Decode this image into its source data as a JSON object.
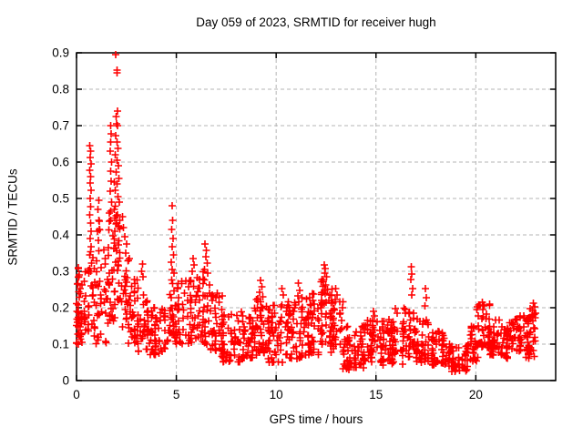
{
  "title": "Day 059 of 2023, SRMTID for receiver hugh",
  "x_axis": {
    "label": "GPS time / hours",
    "min": 0,
    "max": 24,
    "ticks": [
      0,
      5,
      10,
      15,
      20
    ],
    "tick_labels": [
      "0",
      "5",
      "10",
      "15",
      "20"
    ]
  },
  "y_axis": {
    "label": "SRMTID / TECUs",
    "min": 0,
    "max": 0.9,
    "ticks": [
      0,
      0.1,
      0.2,
      0.3,
      0.4,
      0.5,
      0.6,
      0.7,
      0.8,
      0.9
    ],
    "tick_labels": [
      "0",
      "0.1",
      "0.2",
      "0.3",
      "0.4",
      "0.5",
      "0.6",
      "0.7",
      "0.8",
      "0.9"
    ]
  },
  "style": {
    "marker_color": "#ff0000",
    "grid_color": "#b4b4b4",
    "border_color": "#000000",
    "background": "#ffffff"
  },
  "chart_data": {
    "type": "scatter",
    "marker": "plus",
    "series_name": "SRMTID",
    "title": "Day 059 of 2023, SRMTID for receiver hugh",
    "xlabel": "GPS time / hours",
    "ylabel": "SRMTID / TECUs",
    "xlim": [
      0,
      24
    ],
    "ylim": [
      0,
      0.9
    ],
    "grid": "dashed major",
    "legend": "none",
    "feature_points": [
      [
        1.97,
        0.895
      ],
      [
        2.02,
        0.852
      ],
      [
        2.03,
        0.845
      ],
      [
        2.05,
        0.74
      ],
      [
        1.99,
        0.725
      ],
      [
        2.0,
        0.705
      ],
      [
        2.06,
        0.7
      ],
      [
        1.96,
        0.672
      ],
      [
        2.02,
        0.655
      ],
      [
        2.08,
        0.638
      ],
      [
        1.93,
        0.62
      ],
      [
        2.04,
        0.605
      ],
      [
        2.1,
        0.59
      ],
      [
        1.98,
        0.573
      ],
      [
        2.12,
        0.555
      ],
      [
        2.02,
        0.54
      ],
      [
        1.95,
        0.522
      ],
      [
        2.07,
        0.505
      ],
      [
        2.14,
        0.49
      ],
      [
        1.9,
        0.47
      ],
      [
        2.05,
        0.455
      ],
      [
        2.16,
        0.44
      ],
      [
        2.1,
        0.425
      ],
      [
        1.92,
        0.41
      ],
      [
        0.66,
        0.645
      ],
      [
        0.7,
        0.63
      ],
      [
        0.68,
        0.612
      ],
      [
        0.72,
        0.595
      ],
      [
        0.67,
        0.578
      ],
      [
        0.71,
        0.56
      ],
      [
        0.69,
        0.542
      ],
      [
        0.73,
        0.522
      ],
      [
        0.68,
        0.5
      ],
      [
        0.71,
        0.478
      ],
      [
        0.66,
        0.455
      ],
      [
        0.7,
        0.432
      ],
      [
        0.74,
        0.41
      ],
      [
        0.69,
        0.39
      ],
      [
        0.72,
        0.368
      ],
      [
        0.67,
        0.345
      ],
      [
        0.75,
        0.322
      ],
      [
        0.7,
        0.3
      ],
      [
        1.7,
        0.7
      ],
      [
        1.74,
        0.678
      ],
      [
        1.72,
        0.655
      ],
      [
        1.68,
        0.63
      ],
      [
        1.76,
        0.6
      ],
      [
        1.71,
        0.575
      ],
      [
        1.73,
        0.548
      ],
      [
        1.69,
        0.52
      ],
      [
        1.75,
        0.49
      ],
      [
        1.72,
        0.465
      ],
      [
        1.7,
        0.44
      ],
      [
        1.08,
        0.47
      ],
      [
        1.12,
        0.44
      ],
      [
        1.05,
        0.41
      ],
      [
        0.08,
        0.31
      ],
      [
        0.12,
        0.285
      ],
      [
        0.05,
        0.265
      ],
      [
        0.18,
        0.252
      ],
      [
        2.3,
        0.45
      ],
      [
        2.36,
        0.42
      ],
      [
        2.42,
        0.395
      ],
      [
        2.5,
        0.375
      ],
      [
        2.46,
        0.35
      ],
      [
        2.6,
        0.33
      ],
      [
        3.3,
        0.32
      ],
      [
        3.27,
        0.3
      ],
      [
        3.34,
        0.285
      ],
      [
        4.78,
        0.48
      ],
      [
        4.81,
        0.44
      ],
      [
        4.76,
        0.415
      ],
      [
        4.83,
        0.39
      ],
      [
        4.79,
        0.368
      ],
      [
        4.85,
        0.345
      ],
      [
        4.74,
        0.325
      ],
      [
        4.8,
        0.305
      ],
      [
        5.83,
        0.335
      ],
      [
        5.88,
        0.318
      ],
      [
        5.8,
        0.3
      ],
      [
        6.44,
        0.375
      ],
      [
        6.5,
        0.358
      ],
      [
        6.47,
        0.34
      ],
      [
        6.55,
        0.322
      ],
      [
        6.41,
        0.305
      ],
      [
        6.58,
        0.295
      ],
      [
        9.22,
        0.275
      ],
      [
        9.28,
        0.258
      ],
      [
        9.18,
        0.242
      ],
      [
        9.33,
        0.23
      ],
      [
        10.28,
        0.252
      ],
      [
        10.35,
        0.235
      ],
      [
        11.12,
        0.268
      ],
      [
        11.18,
        0.248
      ],
      [
        11.08,
        0.232
      ],
      [
        12.4,
        0.318
      ],
      [
        12.46,
        0.308
      ],
      [
        12.43,
        0.295
      ],
      [
        12.52,
        0.285
      ],
      [
        12.37,
        0.272
      ],
      [
        12.49,
        0.262
      ],
      [
        12.56,
        0.25
      ],
      [
        12.34,
        0.242
      ],
      [
        12.98,
        0.252
      ],
      [
        13.05,
        0.235
      ],
      [
        14.88,
        0.19
      ],
      [
        14.93,
        0.178
      ],
      [
        15.98,
        0.198
      ],
      [
        16.05,
        0.185
      ],
      [
        16.77,
        0.312
      ],
      [
        16.8,
        0.292
      ],
      [
        16.75,
        0.278
      ],
      [
        16.83,
        0.252
      ],
      [
        16.79,
        0.235
      ],
      [
        17.48,
        0.252
      ],
      [
        17.52,
        0.228
      ],
      [
        17.45,
        0.205
      ],
      [
        20.32,
        0.215
      ],
      [
        20.4,
        0.205
      ],
      [
        20.36,
        0.195
      ],
      [
        22.88,
        0.212
      ],
      [
        22.94,
        0.202
      ],
      [
        22.83,
        0.193
      ],
      [
        23.0,
        0.185
      ],
      [
        22.97,
        0.172
      ]
    ],
    "density_bands": [
      [
        0.0,
        0.3,
        30,
        0.1,
        0.24
      ],
      [
        0.05,
        0.3,
        6,
        0.24,
        0.31
      ],
      [
        0.3,
        0.6,
        16,
        0.12,
        0.3
      ],
      [
        0.55,
        0.85,
        14,
        0.15,
        0.4
      ],
      [
        0.85,
        1.3,
        26,
        0.1,
        0.35
      ],
      [
        1.0,
        1.2,
        6,
        0.35,
        0.5
      ],
      [
        1.3,
        1.65,
        20,
        0.1,
        0.38
      ],
      [
        1.6,
        1.95,
        22,
        0.15,
        0.55
      ],
      [
        1.9,
        2.3,
        26,
        0.22,
        0.48
      ],
      [
        2.25,
        2.65,
        22,
        0.14,
        0.34
      ],
      [
        2.6,
        3.1,
        30,
        0.1,
        0.28
      ],
      [
        3.0,
        3.6,
        30,
        0.08,
        0.24
      ],
      [
        3.5,
        4.5,
        55,
        0.07,
        0.2
      ],
      [
        4.4,
        5.1,
        40,
        0.1,
        0.3
      ],
      [
        5.0,
        6.0,
        50,
        0.1,
        0.28
      ],
      [
        6.0,
        6.7,
        40,
        0.1,
        0.3
      ],
      [
        6.7,
        7.3,
        35,
        0.08,
        0.24
      ],
      [
        7.2,
        8.2,
        55,
        0.05,
        0.19
      ],
      [
        8.1,
        9.0,
        50,
        0.06,
        0.21
      ],
      [
        9.0,
        9.7,
        40,
        0.07,
        0.23
      ],
      [
        9.6,
        10.6,
        55,
        0.05,
        0.21
      ],
      [
        10.5,
        11.3,
        45,
        0.06,
        0.22
      ],
      [
        11.2,
        12.2,
        55,
        0.07,
        0.24
      ],
      [
        12.2,
        12.8,
        40,
        0.1,
        0.28
      ],
      [
        12.7,
        13.4,
        38,
        0.07,
        0.24
      ],
      [
        13.3,
        14.4,
        60,
        0.03,
        0.15
      ],
      [
        14.3,
        15.4,
        55,
        0.05,
        0.17
      ],
      [
        15.3,
        16.4,
        55,
        0.04,
        0.17
      ],
      [
        16.3,
        17.1,
        40,
        0.06,
        0.2
      ],
      [
        17.0,
        17.9,
        42,
        0.05,
        0.17
      ],
      [
        17.8,
        18.8,
        48,
        0.04,
        0.14
      ],
      [
        18.7,
        19.6,
        48,
        0.025,
        0.1
      ],
      [
        19.5,
        20.1,
        30,
        0.05,
        0.15
      ],
      [
        20.0,
        20.7,
        40,
        0.09,
        0.21
      ],
      [
        20.6,
        21.3,
        38,
        0.07,
        0.17
      ],
      [
        21.2,
        21.9,
        38,
        0.06,
        0.16
      ],
      [
        21.8,
        22.6,
        42,
        0.08,
        0.18
      ],
      [
        22.5,
        23.05,
        32,
        0.06,
        0.2
      ]
    ]
  }
}
